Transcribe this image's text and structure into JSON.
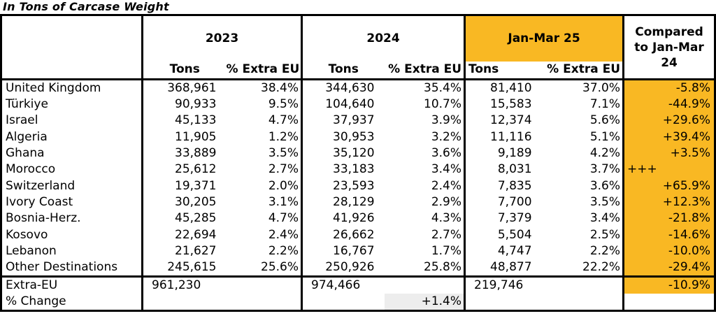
{
  "title": "In Tons of Carcase Weight",
  "colors": {
    "highlight_yellow": "#F9B823",
    "light_gray": "#EDEDED"
  },
  "table": {
    "column_groups": [
      {
        "label": "2023",
        "highlighted": false
      },
      {
        "label": "2024",
        "highlighted": false
      },
      {
        "label": "Jan-Mar 25",
        "highlighted": true
      }
    ],
    "compared_header": "Compared to Jan-Mar 24",
    "subheaders": {
      "tons": "Tons",
      "pct_extra_eu": "% Extra EU"
    },
    "rows": [
      {
        "country": "United Kingdom",
        "tons_2023": "368,961",
        "pct_2023": "38.4%",
        "tons_2024": "344,630",
        "pct_2024": "35.4%",
        "tons_jm25": "81,410",
        "pct_jm25": "37.0%",
        "compared": "-5.8%",
        "compared_align": "right"
      },
      {
        "country": "Türkiye",
        "tons_2023": "90,933",
        "pct_2023": "9.5%",
        "tons_2024": "104,640",
        "pct_2024": "10.7%",
        "tons_jm25": "15,583",
        "pct_jm25": "7.1%",
        "compared": "-44.9%",
        "compared_align": "right"
      },
      {
        "country": "Israel",
        "tons_2023": "45,133",
        "pct_2023": "4.7%",
        "tons_2024": "37,937",
        "pct_2024": "3.9%",
        "tons_jm25": "12,374",
        "pct_jm25": "5.6%",
        "compared": "+29.6%",
        "compared_align": "right"
      },
      {
        "country": "Algeria",
        "tons_2023": "11,905",
        "pct_2023": "1.2%",
        "tons_2024": "30,953",
        "pct_2024": "3.2%",
        "tons_jm25": "11,116",
        "pct_jm25": "5.1%",
        "compared": "+39.4%",
        "compared_align": "right"
      },
      {
        "country": "Ghana",
        "tons_2023": "33,889",
        "pct_2023": "3.5%",
        "tons_2024": "35,120",
        "pct_2024": "3.6%",
        "tons_jm25": "9,189",
        "pct_jm25": "4.2%",
        "compared": "+3.5%",
        "compared_align": "right"
      },
      {
        "country": "Morocco",
        "tons_2023": "25,612",
        "pct_2023": "2.7%",
        "tons_2024": "33,183",
        "pct_2024": "3.4%",
        "tons_jm25": "8,031",
        "pct_jm25": "3.7%",
        "compared": "+++",
        "compared_align": "left"
      },
      {
        "country": "Switzerland",
        "tons_2023": "19,371",
        "pct_2023": "2.0%",
        "tons_2024": "23,593",
        "pct_2024": "2.4%",
        "tons_jm25": "7,835",
        "pct_jm25": "3.6%",
        "compared": "+65.9%",
        "compared_align": "right"
      },
      {
        "country": "Ivory Coast",
        "tons_2023": "30,205",
        "pct_2023": "3.1%",
        "tons_2024": "28,129",
        "pct_2024": "2.9%",
        "tons_jm25": "7,700",
        "pct_jm25": "3.5%",
        "compared": "+12.3%",
        "compared_align": "right"
      },
      {
        "country": "Bosnia-Herz.",
        "tons_2023": "45,285",
        "pct_2023": "4.7%",
        "tons_2024": "41,926",
        "pct_2024": "4.3%",
        "tons_jm25": "7,379",
        "pct_jm25": "3.4%",
        "compared": "-21.8%",
        "compared_align": "right"
      },
      {
        "country": "Kosovo",
        "tons_2023": "22,694",
        "pct_2023": "2.4%",
        "tons_2024": "26,662",
        "pct_2024": "2.7%",
        "tons_jm25": "5,504",
        "pct_jm25": "2.5%",
        "compared": "-14.6%",
        "compared_align": "right"
      },
      {
        "country": "Lebanon",
        "tons_2023": "21,627",
        "pct_2023": "2.2%",
        "tons_2024": "16,767",
        "pct_2024": "1.7%",
        "tons_jm25": "4,747",
        "pct_jm25": "2.2%",
        "compared": "-10.0%",
        "compared_align": "right"
      },
      {
        "country": "Other Destinations",
        "tons_2023": "245,615",
        "pct_2023": "25.6%",
        "tons_2024": "250,926",
        "pct_2024": "25.8%",
        "tons_jm25": "48,877",
        "pct_jm25": "22.2%",
        "compared": "-29.4%",
        "compared_align": "right"
      }
    ],
    "totals": {
      "extra_eu": {
        "label": "Extra-EU",
        "tons_2023": "961,230",
        "tons_2024": "974,466",
        "tons_jm25": "219,746",
        "compared": "-10.9%"
      },
      "pct_change": {
        "label": "% Change",
        "pct_2024": "+1.4%"
      }
    }
  }
}
